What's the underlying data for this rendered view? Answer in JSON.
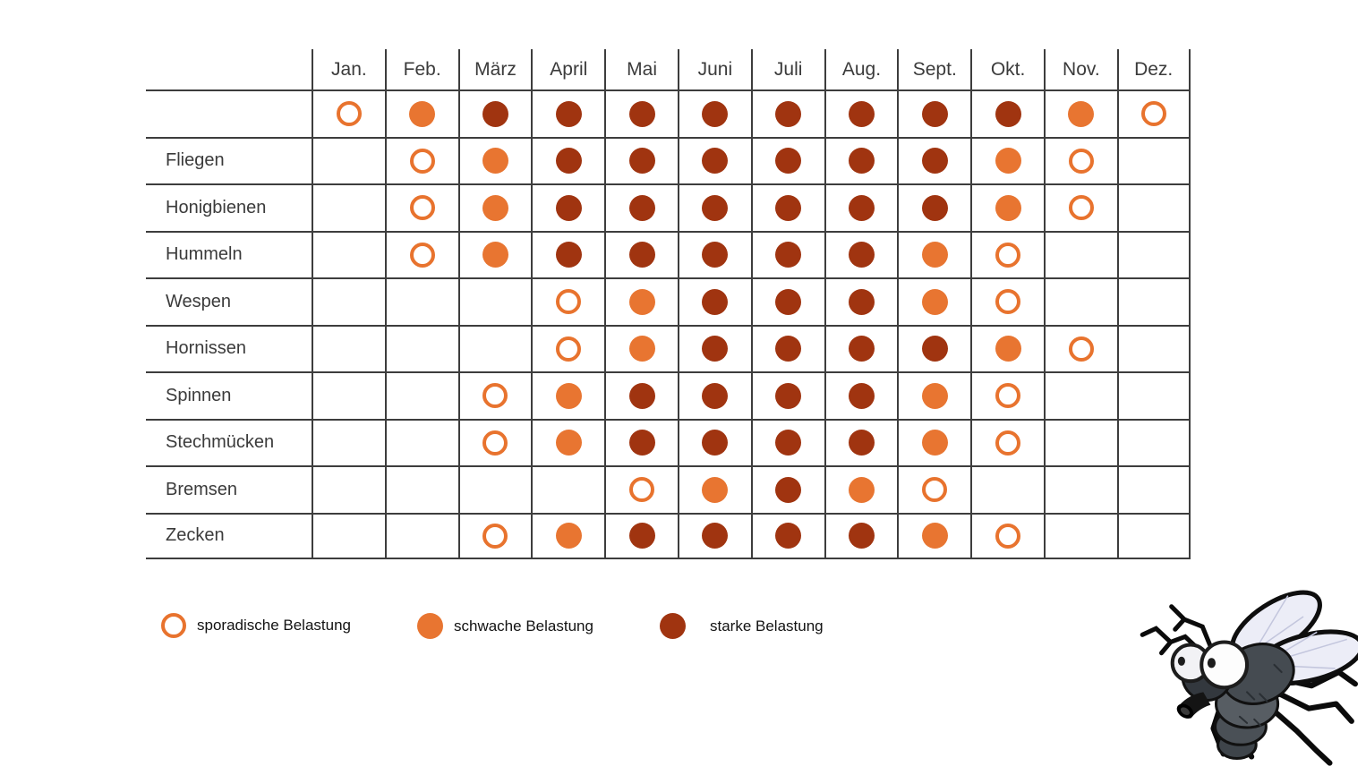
{
  "table": {
    "months": [
      "Jan.",
      "Feb.",
      "März",
      "April",
      "Mai",
      "Juni",
      "Juli",
      "Aug.",
      "Sept.",
      "Okt.",
      "Nov.",
      "Dez."
    ],
    "rows": [
      {
        "label": "",
        "cells": [
          "sporadic",
          "weak",
          "strong",
          "strong",
          "strong",
          "strong",
          "strong",
          "strong",
          "strong",
          "strong",
          "weak",
          "sporadic"
        ]
      },
      {
        "label": "Fliegen",
        "cells": [
          "none",
          "sporadic",
          "weak",
          "strong",
          "strong",
          "strong",
          "strong",
          "strong",
          "strong",
          "weak",
          "sporadic",
          "none"
        ]
      },
      {
        "label": "Honigbienen",
        "cells": [
          "none",
          "sporadic",
          "weak",
          "strong",
          "strong",
          "strong",
          "strong",
          "strong",
          "strong",
          "weak",
          "sporadic",
          "none"
        ]
      },
      {
        "label": "Hummeln",
        "cells": [
          "none",
          "sporadic",
          "weak",
          "strong",
          "strong",
          "strong",
          "strong",
          "strong",
          "weak",
          "sporadic",
          "none",
          "none"
        ]
      },
      {
        "label": "Wespen",
        "cells": [
          "none",
          "none",
          "none",
          "sporadic",
          "weak",
          "strong",
          "strong",
          "strong",
          "weak",
          "sporadic",
          "none",
          "none"
        ]
      },
      {
        "label": "Hornissen",
        "cells": [
          "none",
          "none",
          "none",
          "sporadic",
          "weak",
          "strong",
          "strong",
          "strong",
          "strong",
          "weak",
          "sporadic",
          "none"
        ]
      },
      {
        "label": "Spinnen",
        "cells": [
          "none",
          "none",
          "sporadic",
          "weak",
          "strong",
          "strong",
          "strong",
          "strong",
          "weak",
          "sporadic",
          "none",
          "none"
        ]
      },
      {
        "label": "Stechmücken",
        "cells": [
          "none",
          "none",
          "sporadic",
          "weak",
          "strong",
          "strong",
          "strong",
          "strong",
          "weak",
          "sporadic",
          "none",
          "none"
        ]
      },
      {
        "label": "Bremsen",
        "cells": [
          "none",
          "none",
          "none",
          "none",
          "sporadic",
          "weak",
          "strong",
          "weak",
          "sporadic",
          "none",
          "none",
          "none"
        ]
      },
      {
        "label": "Zecken",
        "cells": [
          "none",
          "none",
          "sporadic",
          "weak",
          "strong",
          "strong",
          "strong",
          "strong",
          "weak",
          "sporadic",
          "none",
          "none"
        ]
      }
    ]
  },
  "legend": [
    {
      "type": "sporadic",
      "label": "sporadische Belastung"
    },
    {
      "type": "weak",
      "label": "schwache Belastung"
    },
    {
      "type": "strong",
      "label": "starke Belastung"
    }
  ],
  "colors": {
    "weak": "#e87531",
    "strong": "#a03410",
    "ring": "#e8732e",
    "grid_line": "#3d3d3d",
    "text": "#3b3b3b"
  },
  "icons": {
    "fly": "cartoon-fly-illustration"
  },
  "chart_data": {
    "type": "heatmap",
    "x": [
      "Jan.",
      "Feb.",
      "März",
      "April",
      "Mai",
      "Juni",
      "Juli",
      "Aug.",
      "Sept.",
      "Okt.",
      "Nov.",
      "Dez."
    ],
    "levels": {
      "0": "",
      "1": "sporadische Belastung",
      "2": "schwache Belastung",
      "3": "starke Belastung"
    },
    "rows": [
      {
        "name": "",
        "values": [
          1,
          2,
          3,
          3,
          3,
          3,
          3,
          3,
          3,
          3,
          2,
          1
        ]
      },
      {
        "name": "Fliegen",
        "values": [
          0,
          1,
          2,
          3,
          3,
          3,
          3,
          3,
          3,
          2,
          1,
          0
        ]
      },
      {
        "name": "Honigbienen",
        "values": [
          0,
          1,
          2,
          3,
          3,
          3,
          3,
          3,
          3,
          2,
          1,
          0
        ]
      },
      {
        "name": "Hummeln",
        "values": [
          0,
          1,
          2,
          3,
          3,
          3,
          3,
          3,
          2,
          1,
          0,
          0
        ]
      },
      {
        "name": "Wespen",
        "values": [
          0,
          0,
          0,
          1,
          2,
          3,
          3,
          3,
          2,
          1,
          0,
          0
        ]
      },
      {
        "name": "Hornissen",
        "values": [
          0,
          0,
          0,
          1,
          2,
          3,
          3,
          3,
          3,
          2,
          1,
          0
        ]
      },
      {
        "name": "Spinnen",
        "values": [
          0,
          0,
          1,
          2,
          3,
          3,
          3,
          3,
          2,
          1,
          0,
          0
        ]
      },
      {
        "name": "Stechmücken",
        "values": [
          0,
          0,
          1,
          2,
          3,
          3,
          3,
          3,
          2,
          1,
          0,
          0
        ]
      },
      {
        "name": "Bremsen",
        "values": [
          0,
          0,
          0,
          0,
          1,
          2,
          3,
          2,
          1,
          0,
          0,
          0
        ]
      },
      {
        "name": "Zecken",
        "values": [
          0,
          0,
          1,
          2,
          3,
          3,
          3,
          3,
          2,
          1,
          0,
          0
        ]
      }
    ],
    "legend_position": "bottom",
    "grid": true
  }
}
